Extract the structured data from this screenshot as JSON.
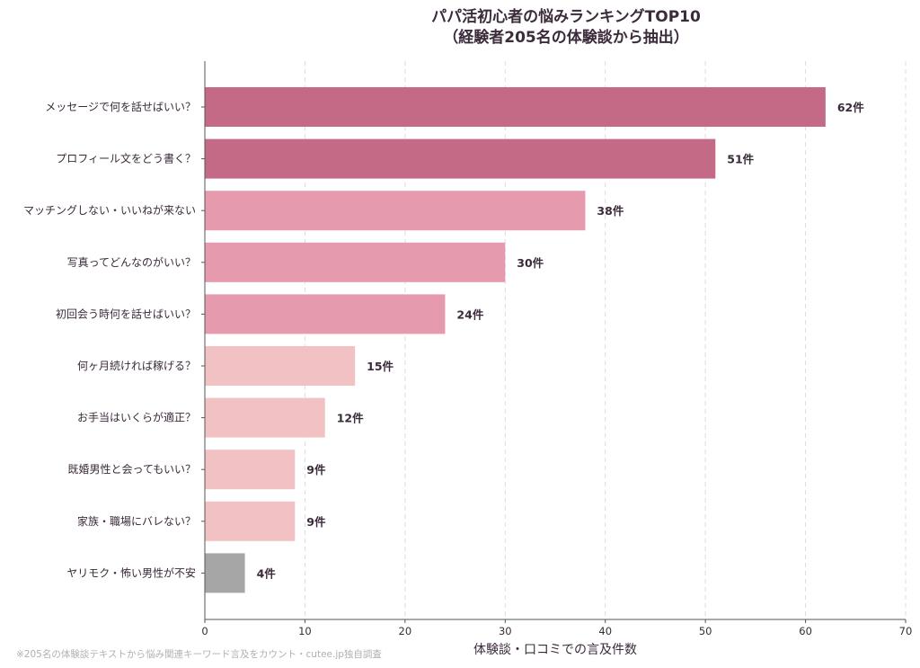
{
  "chart_data": {
    "type": "bar",
    "orientation": "horizontal",
    "title_lines": [
      "パパ活初心者の悩みランキングTOP10",
      "（経験者205名の体験談から抽出）"
    ],
    "xlabel": "体験談・口コミでの言及件数",
    "ylabel": "",
    "xlim": [
      0,
      70
    ],
    "xticks": [
      0,
      10,
      20,
      30,
      40,
      50,
      60,
      70
    ],
    "grid": "vertical dashed",
    "value_suffix": "件",
    "categories": [
      "メッセージで何を話せばいい？",
      "プロフィール文をどう書く？",
      "マッチングしない・いいねが来ない",
      "写真ってどんなのがいい？",
      "初回会う時何を話せばいい？",
      "何ヶ月続ければ稼げる？",
      "お手当はいくらが適正？",
      "既婚男性と会ってもいい？",
      "家族・職場にバレない？",
      "ヤリモク・怖い男性が不安"
    ],
    "values": [
      62,
      51,
      38,
      30,
      24,
      15,
      12,
      9,
      9,
      4
    ],
    "value_labels": [
      "62件",
      "51件",
      "38件",
      "30件",
      "24件",
      "15件",
      "12件",
      "9件",
      "9件",
      "4件"
    ],
    "colors": [
      "#c56a86",
      "#c56a86",
      "#e69aad",
      "#e69aad",
      "#e69aad",
      "#f2c1c3",
      "#f2c1c3",
      "#f2c1c3",
      "#f2c1c3",
      "#a6a6a6"
    ]
  },
  "footnote": "※205名の体験談テキストから悩み関連キーワード言及をカウント・cutee.jp独自調査"
}
